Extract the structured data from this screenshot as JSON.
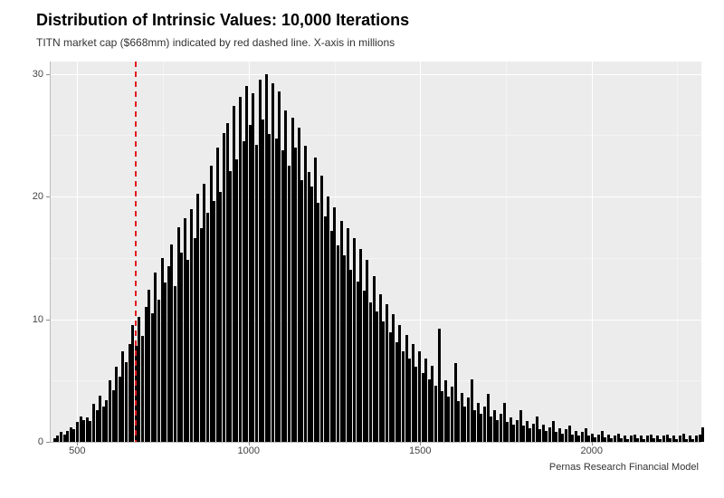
{
  "chart": {
    "type": "histogram",
    "title": "Distribution of Intrinsic Values: 10,000 Iterations",
    "title_fontsize": 18,
    "subtitle": "TITN market cap ($668mm) indicated by red dashed line. X-axis in millions",
    "subtitle_fontsize": 12,
    "credit": "Pernas Research Financial Model",
    "credit_fontsize": 11,
    "background_color": "#ffffff",
    "panel_background": "#ececec",
    "grid_color_major": "#ffffff",
    "grid_color_minor": "#f4f4f4",
    "axis_text_color": "#444444",
    "axis_text_fontsize": 11,
    "bar_color": "#000000",
    "vline_color": "#e31a1c",
    "vline_dash": "6,5",
    "xlim": [
      420,
      2320
    ],
    "ylim": [
      0,
      31
    ],
    "yticks": [
      0,
      10,
      20,
      30
    ],
    "yticks_minor": [
      5,
      15,
      25
    ],
    "xticks": [
      500,
      1000,
      1500,
      2000
    ],
    "xticks_minor": [
      750,
      1250,
      1750,
      2250
    ],
    "vline_x": 668,
    "bin_width": 9.5,
    "bin_start": 430,
    "counts": [
      0.3,
      0.5,
      0.8,
      0.6,
      0.9,
      1.2,
      1.0,
      1.6,
      2.1,
      1.8,
      2.0,
      1.7,
      3.1,
      2.6,
      3.8,
      2.9,
      3.4,
      5.0,
      4.2,
      6.1,
      5.3,
      7.4,
      6.5,
      8.0,
      9.5,
      7.8,
      10.2,
      8.6,
      11.0,
      12.4,
      10.5,
      13.8,
      11.6,
      15.0,
      13.0,
      14.3,
      16.1,
      12.7,
      17.5,
      15.4,
      18.2,
      14.8,
      19.0,
      16.6,
      20.2,
      17.4,
      21.0,
      18.7,
      22.5,
      19.6,
      24.0,
      20.4,
      25.2,
      26.0,
      22.1,
      27.4,
      23.0,
      28.1,
      24.5,
      29.0,
      25.8,
      28.4,
      24.2,
      29.5,
      26.3,
      30.0,
      25.1,
      29.2,
      24.7,
      28.6,
      23.8,
      27.0,
      22.5,
      26.4,
      24.0,
      25.6,
      21.3,
      24.1,
      22.0,
      20.8,
      23.2,
      19.5,
      21.7,
      18.4,
      20.0,
      17.2,
      19.1,
      16.0,
      18.0,
      15.2,
      17.4,
      14.0,
      16.6,
      13.1,
      15.7,
      12.3,
      14.8,
      11.4,
      13.5,
      10.6,
      12.0,
      9.8,
      11.2,
      8.9,
      10.4,
      8.1,
      9.5,
      7.4,
      8.7,
      6.8,
      8.0,
      6.1,
      7.4,
      5.6,
      6.8,
      5.1,
      6.2,
      4.6,
      9.2,
      4.1,
      5.0,
      3.7,
      4.5,
      6.4,
      3.3,
      4.0,
      2.9,
      3.6,
      5.1,
      2.6,
      3.2,
      2.3,
      2.9,
      3.9,
      2.1,
      2.6,
      1.8,
      2.3,
      3.2,
      1.6,
      2.0,
      1.4,
      1.8,
      2.6,
      1.3,
      1.7,
      1.1,
      1.5,
      2.1,
      1.0,
      1.4,
      0.9,
      1.2,
      1.7,
      0.8,
      1.1,
      0.7,
      1.0,
      1.3,
      0.6,
      0.9,
      0.5,
      0.8,
      1.1,
      0.5,
      0.7,
      0.4,
      0.6,
      0.9,
      0.4,
      0.6,
      0.3,
      0.5,
      0.7,
      0.3,
      0.5,
      0.2,
      0.5,
      0.6,
      0.3,
      0.5,
      0.2,
      0.5,
      0.6,
      0.3,
      0.5,
      0.2,
      0.5,
      0.6,
      0.3,
      0.5,
      0.2,
      0.5,
      0.7,
      0.2,
      0.5,
      0.2,
      0.5,
      0.6,
      1.2
    ]
  }
}
